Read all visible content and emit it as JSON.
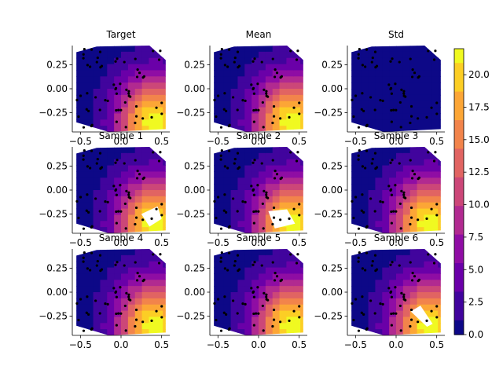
{
  "figure": {
    "panel_titles": [
      "Target",
      "Mean",
      "Std",
      "Sample 1",
      "Sample 2",
      "Sample 3",
      "Sample 4",
      "Sample 5",
      "Sample 6"
    ],
    "xticks": [
      "−0.5",
      "0.0",
      "0.5"
    ],
    "yticks": [
      "0.25",
      "0.00",
      "−0.25"
    ],
    "colorbar_ticks": [
      "0.0",
      "2.5",
      "5.0",
      "7.5",
      "10.0",
      "12.5",
      "15.0",
      "17.5",
      "20.0"
    ],
    "colorbar_label": "",
    "colormap": [
      "#0d0887",
      "#41049d",
      "#6a00a8",
      "#8f0da4",
      "#b12a90",
      "#cc4778",
      "#e16462",
      "#f2844b",
      "#fca636",
      "#fcce25",
      "#f0f921"
    ]
  },
  "chart_data": {
    "type": "heatmap",
    "subtype": "filled-contour-grid",
    "layout": "3x3 grid of tricontour panels with scattered sample points",
    "xlim": [
      -0.6,
      0.6
    ],
    "ylim": [
      -0.45,
      0.45
    ],
    "xticks": [
      -0.5,
      0.0,
      0.5
    ],
    "yticks": [
      0.25,
      0.0,
      -0.25
    ],
    "colorbar_range": [
      0,
      22
    ],
    "colorbar_ticks": [
      0,
      2.5,
      5,
      7.5,
      10,
      12.5,
      15,
      17.5,
      20
    ],
    "field": {
      "description": "value rises from ~1 in the upper-left to ~22 in the lower-right",
      "center": [
        0.4,
        -0.35
      ],
      "peak": 22
    },
    "panels": [
      {
        "title": "Target",
        "hole": null
      },
      {
        "title": "Mean",
        "hole": null
      },
      {
        "title": "Std",
        "constant_value": 1.0,
        "hole": null
      },
      {
        "title": "Sample 1",
        "hole": [
          [
            0.25,
            -0.25
          ],
          [
            0.45,
            -0.17
          ],
          [
            0.5,
            -0.3
          ],
          [
            0.35,
            -0.38
          ]
        ]
      },
      {
        "title": "Sample 2",
        "hole": [
          [
            0.12,
            -0.22
          ],
          [
            0.35,
            -0.2
          ],
          [
            0.45,
            -0.35
          ],
          [
            0.2,
            -0.4
          ]
        ]
      },
      {
        "title": "Sample 3",
        "hole": null
      },
      {
        "title": "Sample 4",
        "hole": null
      },
      {
        "title": "Sample 5",
        "hole": null
      },
      {
        "title": "Sample 6",
        "hole": [
          [
            0.18,
            -0.2
          ],
          [
            0.3,
            -0.14
          ],
          [
            0.45,
            -0.33
          ],
          [
            0.38,
            -0.36
          ]
        ]
      }
    ]
  }
}
